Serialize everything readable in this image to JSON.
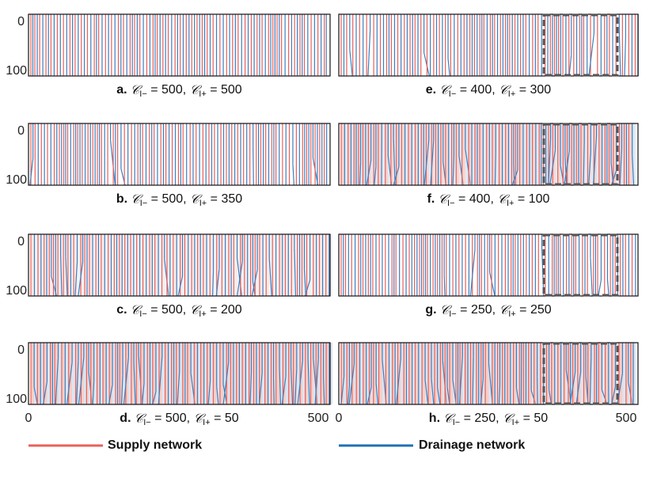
{
  "panels": [
    {
      "label": "a.",
      "c_minus": "500",
      "c_plus": "500"
    },
    {
      "label": "b.",
      "c_minus": "500",
      "c_plus": "350"
    },
    {
      "label": "c.",
      "c_minus": "500",
      "c_plus": "200"
    },
    {
      "label": "d.",
      "c_minus": "500",
      "c_plus": "50"
    },
    {
      "label": "e.",
      "c_minus": "400",
      "c_plus": "300"
    },
    {
      "label": "f.",
      "c_minus": "400",
      "c_plus": "100"
    },
    {
      "label": "g.",
      "c_minus": "250",
      "c_plus": "250"
    },
    {
      "label": "h.",
      "c_minus": "250",
      "c_plus": "50"
    }
  ],
  "notation": {
    "symbol": "𝒞",
    "minus": "I−",
    "plus": "I+",
    "eq": " = ",
    "sep": ", "
  },
  "axis": {
    "y": [
      "0",
      "100"
    ],
    "x": [
      "0",
      "500"
    ]
  },
  "legend": [
    "Supply network",
    "Drainage network"
  ]
}
